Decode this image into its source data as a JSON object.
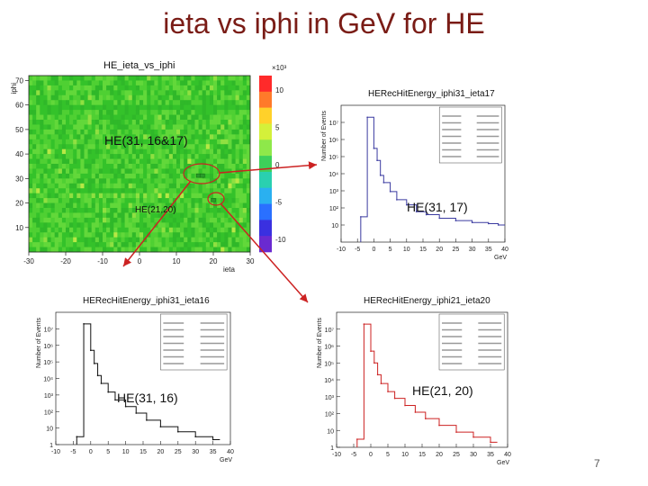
{
  "slide": {
    "title": "ieta vs iphi in GeV for HE",
    "page_number": "7"
  },
  "annotations": {
    "label_31_16_17": "HE(31, 16&17)",
    "label_21_20_small": "HE(21,20)",
    "label_31_17": "HE(31, 17)",
    "label_31_16": "HE(31, 16)",
    "label_21_20": "HE(21, 20)",
    "arrow_color": "#cc2222"
  },
  "chart_data": [
    {
      "type": "heatmap",
      "title": "HE_ieta_vs_iphi",
      "xlabel": "ieta",
      "ylabel": "iphi",
      "xlim": [
        -30,
        30
      ],
      "ylim": [
        0,
        72
      ],
      "x_ticks": [
        "-30",
        "-20",
        "-10",
        "0",
        "10",
        "20",
        "30"
      ],
      "y_ticks": [
        "10",
        "20",
        "30",
        "40",
        "50",
        "60",
        "70"
      ],
      "z_multiplier": "×10³",
      "z_ticks": [
        "10",
        "5",
        "0",
        "-5",
        "-10"
      ],
      "hot_cells": [
        {
          "ieta": 16,
          "iphi": 31
        },
        {
          "ieta": 17,
          "iphi": 31
        },
        {
          "ieta": 20,
          "iphi": 21
        }
      ]
    },
    {
      "type": "line",
      "title": "HERecHitEnergy_iphi31_ieta17",
      "xlabel": "GeV",
      "ylabel": "Number of Events",
      "xlim": [
        -10,
        40
      ],
      "x_ticks": [
        "-10",
        "-5",
        "0",
        "5",
        "10",
        "15",
        "20",
        "25",
        "30",
        "35",
        "40"
      ],
      "y_ticks": [
        "10",
        "10²",
        "10³",
        "10⁴",
        "10⁵",
        "10⁶",
        "10⁷"
      ],
      "y_log": true,
      "line_color": "#3a3aa0",
      "x": [
        -4,
        -2,
        0,
        1,
        2,
        3,
        5,
        7,
        10,
        13,
        16,
        20,
        25,
        30,
        35,
        38
      ],
      "y": [
        30,
        20000000,
        300000,
        60000,
        8000,
        3000,
        900,
        300,
        150,
        60,
        40,
        25,
        18,
        14,
        12,
        10
      ]
    },
    {
      "type": "line",
      "title": "HERecHitEnergy_iphi31_ieta16",
      "xlabel": "GeV",
      "ylabel": "Number of Events",
      "xlim": [
        -10,
        40
      ],
      "x_ticks": [
        "-10",
        "-5",
        "0",
        "5",
        "10",
        "15",
        "20",
        "25",
        "30",
        "35",
        "40"
      ],
      "y_ticks": [
        "1",
        "10",
        "10²",
        "10³",
        "10⁴",
        "10⁵",
        "10⁶",
        "10⁷"
      ],
      "y_log": true,
      "line_color": "#111111",
      "x": [
        -4,
        -2,
        0,
        1,
        2,
        3,
        5,
        7,
        10,
        13,
        16,
        20,
        25,
        30,
        35
      ],
      "y": [
        3,
        20000000,
        500000,
        80000,
        15000,
        5000,
        1500,
        500,
        200,
        80,
        30,
        12,
        6,
        3,
        2
      ]
    },
    {
      "type": "line",
      "title": "HERecHitEnergy_iphi21_ieta20",
      "xlabel": "GeV",
      "ylabel": "Number of Events",
      "xlim": [
        -10,
        40
      ],
      "x_ticks": [
        "-10",
        "-5",
        "0",
        "5",
        "10",
        "15",
        "20",
        "25",
        "30",
        "35",
        "40"
      ],
      "y_ticks": [
        "1",
        "10",
        "10²",
        "10³",
        "10⁴",
        "10⁵",
        "10⁶",
        "10⁷"
      ],
      "y_log": true,
      "line_color": "#cc2222",
      "x": [
        -4,
        -2,
        0,
        1,
        2,
        3,
        5,
        7,
        10,
        13,
        16,
        20,
        25,
        30,
        35
      ],
      "y": [
        3,
        20000000,
        500000,
        100000,
        20000,
        6000,
        2000,
        800,
        300,
        120,
        50,
        20,
        8,
        4,
        2
      ]
    }
  ]
}
